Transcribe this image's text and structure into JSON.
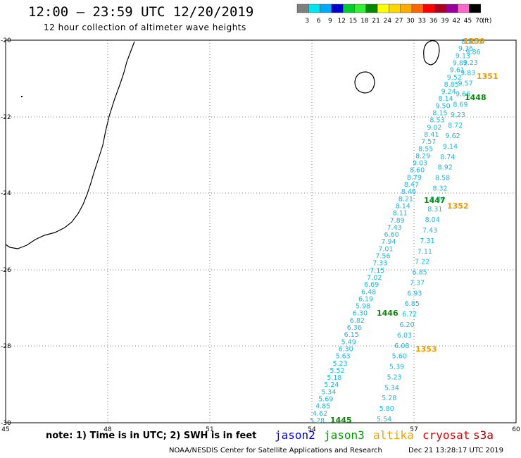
{
  "header": {
    "title": "12:00 – 23:59 UTC 12/20/2019",
    "subtitle": "12 hour collection of altimeter wave heights"
  },
  "legend_scale": {
    "labels": [
      "3",
      "6",
      "9",
      "12",
      "15",
      "18",
      "21",
      "24",
      "27",
      "30",
      "33",
      "36",
      "39",
      "42",
      "45",
      "70"
    ],
    "unit": "(ft)",
    "colors": [
      "#7f7f7f",
      "#00e5ee",
      "#00a8ff",
      "#0000cc",
      "#00cc33",
      "#33ee33",
      "#008800",
      "#ffff00",
      "#ffd700",
      "#ffaa00",
      "#ff6600",
      "#ff0000",
      "#aa0022",
      "#990099",
      "#ff66cc",
      "#000000"
    ]
  },
  "axes": {
    "lon_labels": [
      "45",
      "48",
      "51",
      "54",
      "57",
      "60"
    ],
    "lat_labels": [
      "-20",
      "-22",
      "-24",
      "-26",
      "-28",
      "-30"
    ]
  },
  "pass_labels": [
    {
      "text": "1350",
      "color": "#f59b00"
    },
    {
      "text": "1351",
      "color": "#f59b00"
    },
    {
      "text": "1448",
      "color": "#0a8a0a"
    },
    {
      "text": "1447",
      "color": "#0a8a0a"
    },
    {
      "text": "1352",
      "color": "#f59b00"
    },
    {
      "text": "1446",
      "color": "#0a8a0a"
    },
    {
      "text": "1353",
      "color": "#f59b00"
    },
    {
      "text": "1445",
      "color": "#0a8a0a"
    }
  ],
  "track_a": {
    "color": "#1cb8e0",
    "values": [
      "8.55",
      "9.36",
      "9.13",
      "9.81",
      "9.61",
      "9.52",
      "8.85",
      "9.24",
      "8.14",
      "9.50",
      "8.15",
      "8.53",
      "9.02",
      "8.41",
      "7.57",
      "8.55",
      "8.29",
      "9.03",
      "8.60",
      "8.79",
      "8.47",
      "8.46",
      "8.21",
      "8.14",
      "8.11",
      "7.89",
      "7.43",
      "6.60",
      "7.94",
      "7.01",
      "7.56",
      "7.33",
      "7.15",
      "7.02",
      "6.69",
      "6.48",
      "6.19",
      "5.98",
      "6.30",
      "6.82",
      "6.36",
      "6.15",
      "5.49",
      "6.30",
      "5.63",
      "5.23",
      "5.52",
      "5.18",
      "5.24",
      "5.34",
      "5.69",
      "4.85",
      "4.62",
      "5.28"
    ]
  },
  "track_b": {
    "color": "#1cb8e0",
    "values": [
      "8.35",
      "9.86",
      "9.23",
      "9.83",
      "9.57",
      "9.66",
      "8.69",
      "9.23",
      "8.72",
      "9.62",
      "9.14",
      "8.74",
      "8.92",
      "8.58",
      "8.32",
      "8.04",
      "8.31",
      "8.04",
      "7.43",
      "7.31",
      "7.11",
      "7.22",
      "6.85",
      "7.37",
      "6.93",
      "6.85",
      "6.72",
      "6.20",
      "6.03",
      "6.08",
      "5.60",
      "5.39",
      "5.23",
      "5.34",
      "5.28",
      "5.80",
      "5.54"
    ]
  },
  "footer": {
    "note": "note: 1) Time is in UTC; 2) SWH is in feet",
    "satellites": [
      {
        "name": "jason2",
        "color": "#0000dd"
      },
      {
        "name": "jason3",
        "color": "#009900"
      },
      {
        "name": "altika",
        "color": "#f5a000"
      },
      {
        "name": "cryosat",
        "color": "#dd0000"
      },
      {
        "name": "s3a",
        "color": "#aa0000"
      }
    ],
    "credit": "NOAA/NESDIS Center for Satellite Applications and Research",
    "timestamp": "Dec 21 13:28:17 UTC 2019"
  }
}
